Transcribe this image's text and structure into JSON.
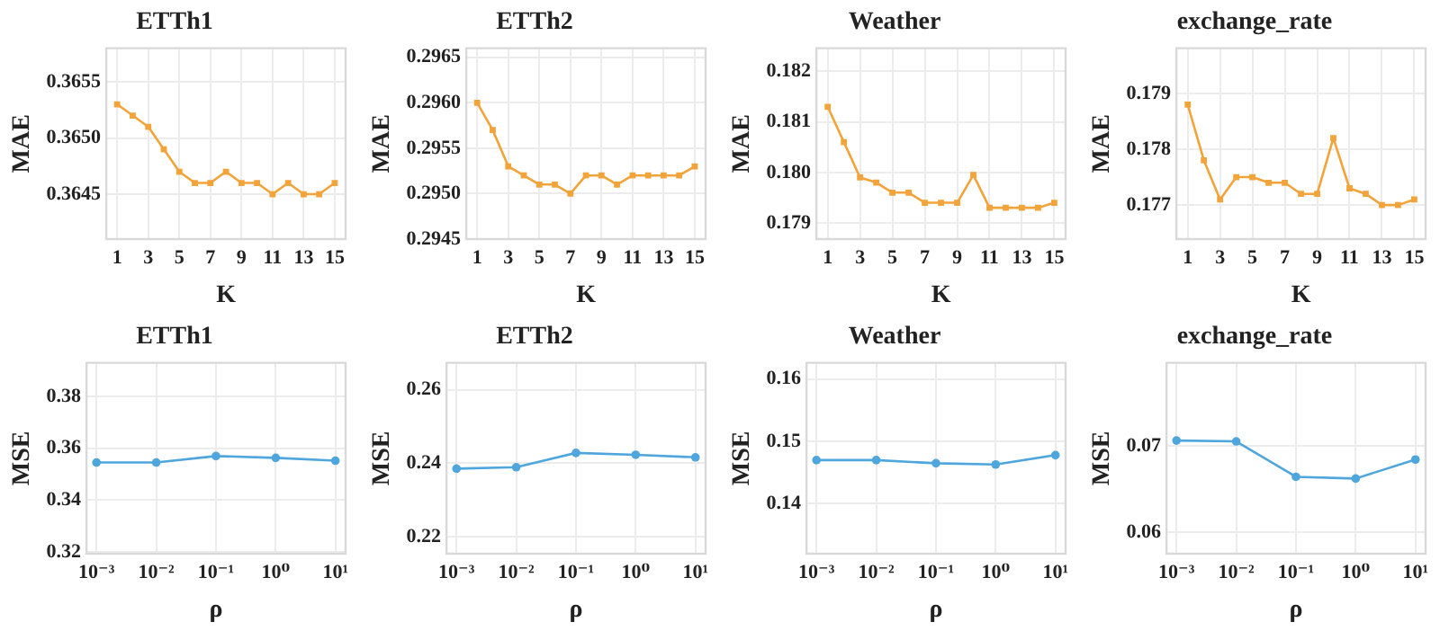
{
  "chart_data": [
    {
      "type": "line",
      "title": "ETTh1",
      "xlabel": "K",
      "ylabel": "MAE",
      "x": [
        1,
        2,
        3,
        4,
        5,
        6,
        7,
        8,
        9,
        10,
        11,
        12,
        13,
        14,
        15
      ],
      "series": [
        {
          "color": "#f2a33a",
          "values": [
            0.3653,
            0.3652,
            0.3651,
            0.3649,
            0.3647,
            0.3646,
            0.3646,
            0.3647,
            0.3646,
            0.3646,
            0.3645,
            0.3646,
            0.3645,
            0.3645,
            0.3646
          ]
        }
      ],
      "xlim": [
        0.3,
        15.7
      ],
      "xticks": [
        1,
        3,
        5,
        7,
        9,
        11,
        13,
        15
      ],
      "ylim": [
        0.3641,
        0.3658
      ],
      "yticks": [
        0.3645,
        {
          "value": 0.365,
          "label": "0.3650"
        },
        0.3655
      ],
      "grid": true,
      "marker": "square",
      "line_style": "solid"
    },
    {
      "type": "line",
      "title": "ETTh2",
      "xlabel": "K",
      "ylabel": "MAE",
      "x": [
        1,
        2,
        3,
        4,
        5,
        6,
        7,
        8,
        9,
        10,
        11,
        12,
        13,
        14,
        15
      ],
      "series": [
        {
          "color": "#f2a33a",
          "values": [
            0.296,
            0.2957,
            0.2953,
            0.2952,
            0.2951,
            0.2951,
            0.295,
            0.2952,
            0.2952,
            0.2951,
            0.2952,
            0.2952,
            0.2952,
            0.2952,
            0.2953
          ]
        }
      ],
      "xlim": [
        0.3,
        15.7
      ],
      "xticks": [
        1,
        3,
        5,
        7,
        9,
        11,
        13,
        15
      ],
      "ylim": [
        0.2945,
        0.2966
      ],
      "yticks": [
        {
          "value": 0.2945,
          "label": "0.2945"
        },
        {
          "value": 0.295,
          "label": "0.2950"
        },
        {
          "value": 0.2955,
          "label": "0.2955"
        },
        {
          "value": 0.296,
          "label": "0.2960"
        },
        {
          "value": 0.2965,
          "label": "0.2965"
        }
      ],
      "grid": true,
      "marker": "square",
      "line_style": "solid"
    },
    {
      "type": "line",
      "title": "Weather",
      "xlabel": "K",
      "ylabel": "MAE",
      "x": [
        1,
        2,
        3,
        4,
        5,
        6,
        7,
        8,
        9,
        10,
        11,
        12,
        13,
        14,
        15
      ],
      "series": [
        {
          "color": "#f2a33a",
          "values": [
            0.1813,
            0.1806,
            0.1799,
            0.1798,
            0.1796,
            0.1796,
            0.1794,
            0.1794,
            0.1794,
            0.17995,
            0.1793,
            0.1793,
            0.1793,
            0.1793,
            0.1794
          ]
        }
      ],
      "xlim": [
        0.3,
        15.7
      ],
      "xticks": [
        1,
        3,
        5,
        7,
        9,
        11,
        13,
        15
      ],
      "ylim": [
        0.17868,
        0.18246
      ],
      "yticks": [
        0.179,
        {
          "value": 0.18,
          "label": "0.180"
        },
        0.181,
        0.182
      ],
      "grid": true,
      "marker": "square",
      "line_style": "solid"
    },
    {
      "type": "line",
      "title": "exchange_rate",
      "xlabel": "K",
      "ylabel": "MAE",
      "x": [
        1,
        2,
        3,
        4,
        5,
        6,
        7,
        8,
        9,
        10,
        11,
        12,
        13,
        14,
        15
      ],
      "series": [
        {
          "color": "#f2a33a",
          "values": [
            0.1788,
            0.1778,
            0.1771,
            0.1775,
            0.1775,
            0.1774,
            0.1774,
            0.1772,
            0.1772,
            0.1782,
            0.1773,
            0.1772,
            0.177,
            0.177,
            0.1771
          ]
        }
      ],
      "xlim": [
        0.3,
        15.7
      ],
      "xticks": [
        1,
        3,
        5,
        7,
        9,
        11,
        13,
        15
      ],
      "ylim": [
        0.17639,
        0.17981
      ],
      "yticks": [
        0.177,
        0.178,
        0.179
      ],
      "grid": true,
      "marker": "square",
      "line_style": "solid"
    },
    {
      "type": "line",
      "title": "ETTh1",
      "xlabel": "ρ",
      "ylabel": "MSE",
      "x": [
        0.001,
        0.01,
        0.1,
        1,
        10
      ],
      "series": [
        {
          "color": "#4ea6dc",
          "values": [
            0.3545,
            0.3545,
            0.357,
            0.3563,
            0.3552
          ]
        }
      ],
      "xlim": [
        0.00068,
        14.8
      ],
      "xticks": [
        {
          "value": 0.001,
          "label": "10⁻³"
        },
        {
          "value": 0.01,
          "label": "10⁻²"
        },
        {
          "value": 0.1,
          "label": "10⁻¹"
        },
        {
          "value": 1,
          "label": "10⁰"
        },
        {
          "value": 10,
          "label": "10¹"
        }
      ],
      "log": "x",
      "ylim": [
        0.3193,
        0.393
      ],
      "yticks": [
        0.32,
        0.34,
        0.36,
        0.38
      ],
      "grid": true,
      "marker": "circle",
      "line_style": "solid"
    },
    {
      "type": "line",
      "title": "ETTh2",
      "xlabel": "ρ",
      "ylabel": "MSE",
      "x": [
        0.001,
        0.01,
        0.1,
        1,
        10
      ],
      "series": [
        {
          "color": "#4ea6dc",
          "values": [
            0.2385,
            0.2389,
            0.2428,
            0.2423,
            0.2416
          ]
        }
      ],
      "xlim": [
        0.00068,
        14.8
      ],
      "xticks": [
        {
          "value": 0.001,
          "label": "10⁻³"
        },
        {
          "value": 0.01,
          "label": "10⁻²"
        },
        {
          "value": 0.1,
          "label": "10⁻¹"
        },
        {
          "value": 1,
          "label": "10⁰"
        },
        {
          "value": 10,
          "label": "10¹"
        }
      ],
      "log": "x",
      "ylim": [
        0.2153,
        0.2674
      ],
      "yticks": [
        0.22,
        0.24,
        0.26
      ],
      "grid": true,
      "marker": "circle",
      "line_style": "solid"
    },
    {
      "type": "line",
      "title": "Weather",
      "xlabel": "ρ",
      "ylabel": "MSE",
      "x": [
        0.001,
        0.01,
        0.1,
        1,
        10
      ],
      "series": [
        {
          "color": "#4ea6dc",
          "values": [
            0.147,
            0.147,
            0.1465,
            0.1463,
            0.1478
          ]
        }
      ],
      "xlim": [
        0.00068,
        14.8
      ],
      "xticks": [
        {
          "value": 0.001,
          "label": "10⁻³"
        },
        {
          "value": 0.01,
          "label": "10⁻²"
        },
        {
          "value": 0.1,
          "label": "10⁻¹"
        },
        {
          "value": 1,
          "label": "10⁰"
        },
        {
          "value": 10,
          "label": "10¹"
        }
      ],
      "log": "x",
      "ylim": [
        0.132,
        0.1626
      ],
      "yticks": [
        0.14,
        0.15,
        0.16
      ],
      "grid": true,
      "marker": "circle",
      "line_style": "solid"
    },
    {
      "type": "line",
      "title": "exchange_rate",
      "xlabel": "ρ",
      "ylabel": "MSE",
      "x": [
        0.001,
        0.01,
        0.1,
        1,
        10
      ],
      "series": [
        {
          "color": "#4ea6dc",
          "values": [
            0.0706,
            0.0705,
            0.0664,
            0.0662,
            0.0684
          ]
        }
      ],
      "xlim": [
        0.00068,
        14.8
      ],
      "xticks": [
        {
          "value": 0.001,
          "label": "10⁻³"
        },
        {
          "value": 0.01,
          "label": "10⁻²"
        },
        {
          "value": 0.1,
          "label": "10⁻¹"
        },
        {
          "value": 1,
          "label": "10⁰"
        },
        {
          "value": 10,
          "label": "10¹"
        }
      ],
      "log": "x",
      "ylim": [
        0.0575,
        0.0796
      ],
      "yticks": [
        {
          "value": 0.06,
          "label": "0.06"
        },
        {
          "value": 0.07,
          "label": "0.07"
        }
      ],
      "grid": true,
      "marker": "circle",
      "line_style": "solid"
    }
  ]
}
